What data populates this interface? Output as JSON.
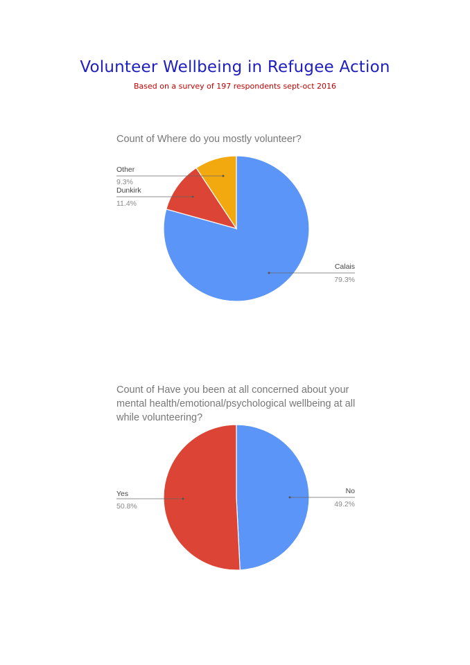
{
  "header": {
    "title": "Volunteer Wellbeing in Refugee Action",
    "subtitle": "Based on a survey of 197 respondents sept-oct 2016"
  },
  "chart_data": [
    {
      "type": "pie",
      "title": "Count of Where do you mostly volunteer?",
      "slices": [
        {
          "label": "Calais",
          "value": 79.3,
          "display": "79.3%",
          "color": "#5b95f7"
        },
        {
          "label": "Dunkirk",
          "value": 11.4,
          "display": "11.4%",
          "color": "#dc4535"
        },
        {
          "label": "Other",
          "value": 9.3,
          "display": "9.3%",
          "color": "#f2a90f"
        }
      ]
    },
    {
      "type": "pie",
      "title": "Count of Have you been at all concerned about your mental health/emotional/psychological wellbeing at all while volunteering?",
      "slices": [
        {
          "label": "No",
          "value": 49.2,
          "display": "49.2%",
          "color": "#5b95f7"
        },
        {
          "label": "Yes",
          "value": 50.8,
          "display": "50.8%",
          "color": "#dc4535"
        }
      ]
    }
  ]
}
